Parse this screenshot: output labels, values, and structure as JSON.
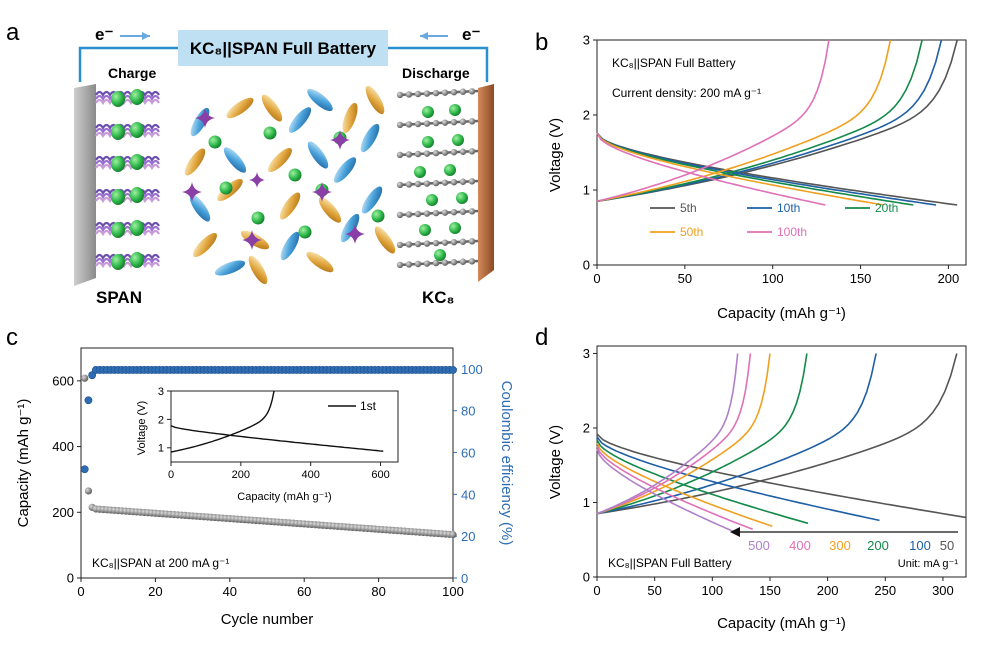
{
  "panel_letters": {
    "a": "a",
    "b": "b",
    "c": "c",
    "d": "d"
  },
  "schematic": {
    "title": "KC₈||SPAN Full Battery",
    "electron": "e⁻",
    "charge": "Charge",
    "discharge": "Discharge",
    "left_label": "SPAN",
    "right_label": "KC₈",
    "colors": {
      "banner": "#bfe0f2",
      "wire": "#2a8fd0",
      "copper": "#b4663a",
      "sphere": "#2eb84a",
      "sulfur_star": "#8a3fa6",
      "ellipse_gold": "#e0a43b",
      "ellipse_blue": "#4aa3dc"
    }
  },
  "panel_b": {
    "text1": "KC₈||SPAN Full Battery",
    "text2": "Current density: 200 mA g⁻¹",
    "xlabel": "Capacity (mAh g⁻¹)",
    "ylabel": "Voltage (V)"
  },
  "panel_c": {
    "annotation": "KC₈||SPAN at 200 mA g⁻¹",
    "xlabel": "Cycle number",
    "ylabel_left": "Capacity (mAh g⁻¹)",
    "ylabel_right": "Coulombic efficiency (%)",
    "inset": {
      "xlabel": "Capacity (mAh g⁻¹)",
      "ylabel": "Voltage (V)",
      "legend": "1st"
    }
  },
  "panel_d": {
    "text1": "KC₈||SPAN Full Battery",
    "unit": "Unit: mA g⁻¹",
    "xlabel": "Capacity (mAh g⁻¹)",
    "ylabel": "Voltage (V)"
  },
  "chart_data": [
    {
      "panel": "b",
      "type": "line",
      "xlim": [
        0,
        210
      ],
      "ylim": [
        0,
        3
      ],
      "xticks": [
        0,
        50,
        100,
        150,
        200
      ],
      "yticks": [
        0,
        1,
        2,
        3
      ],
      "series": [
        {
          "name": "5th",
          "color": "#555555",
          "charge_capacity": 205,
          "discharge_capacity": 205
        },
        {
          "name": "10th",
          "color": "#1f5fa5",
          "charge_capacity": 196,
          "discharge_capacity": 193
        },
        {
          "name": "20th",
          "color": "#138a4a",
          "charge_capacity": 185,
          "discharge_capacity": 180
        },
        {
          "name": "50th",
          "color": "#f0a020",
          "charge_capacity": 167,
          "discharge_capacity": 163
        },
        {
          "name": "100th",
          "color": "#e070b8",
          "charge_capacity": 132,
          "discharge_capacity": 130
        }
      ]
    },
    {
      "panel": "c",
      "type": "scatter",
      "xlim": [
        0,
        100
      ],
      "ylim": [
        0,
        700
      ],
      "y2lim": [
        0,
        110
      ],
      "xticks": [
        0,
        20,
        40,
        60,
        80,
        100
      ],
      "yticks": [
        0,
        200,
        400,
        600
      ],
      "y2ticks": [
        0,
        20,
        40,
        60,
        80,
        100
      ],
      "capacity": {
        "color": "#666666",
        "first_cycles": [
          [
            1,
            608
          ],
          [
            2,
            265
          ],
          [
            3,
            215
          ]
        ],
        "end_cycle": 100,
        "start_value": 210,
        "end_value": 132
      },
      "coulombic_efficiency": {
        "color": "#2e6db4",
        "first_cycles": [
          [
            1,
            52
          ],
          [
            2,
            85
          ],
          [
            3,
            97
          ]
        ],
        "steady_value": 99.5
      },
      "inset": {
        "type": "line",
        "xlim": [
          0,
          650
        ],
        "ylim": [
          0.5,
          3
        ],
        "xticks": [
          0,
          200,
          400,
          600
        ],
        "yticks": [
          1,
          2,
          3
        ],
        "charge_capacity": 295,
        "discharge_capacity": 608
      }
    },
    {
      "panel": "d",
      "type": "line",
      "xlim": [
        0,
        320
      ],
      "ylim": [
        0,
        3.1
      ],
      "xticks": [
        0,
        50,
        100,
        150,
        200,
        250,
        300
      ],
      "yticks": [
        0,
        1,
        2,
        3
      ],
      "series": [
        {
          "name": "50",
          "color": "#555555",
          "charge_capacity": 312,
          "discharge_capacity": 320
        },
        {
          "name": "100",
          "color": "#1f5fa5",
          "charge_capacity": 242,
          "discharge_capacity": 245
        },
        {
          "name": "200",
          "color": "#138a4a",
          "charge_capacity": 182,
          "discharge_capacity": 183
        },
        {
          "name": "300",
          "color": "#f0a020",
          "charge_capacity": 150,
          "discharge_capacity": 152
        },
        {
          "name": "400",
          "color": "#e070b8",
          "charge_capacity": 133,
          "discharge_capacity": 135
        },
        {
          "name": "500",
          "color": "#b080c8",
          "charge_capacity": 122,
          "discharge_capacity": 120
        }
      ]
    }
  ]
}
